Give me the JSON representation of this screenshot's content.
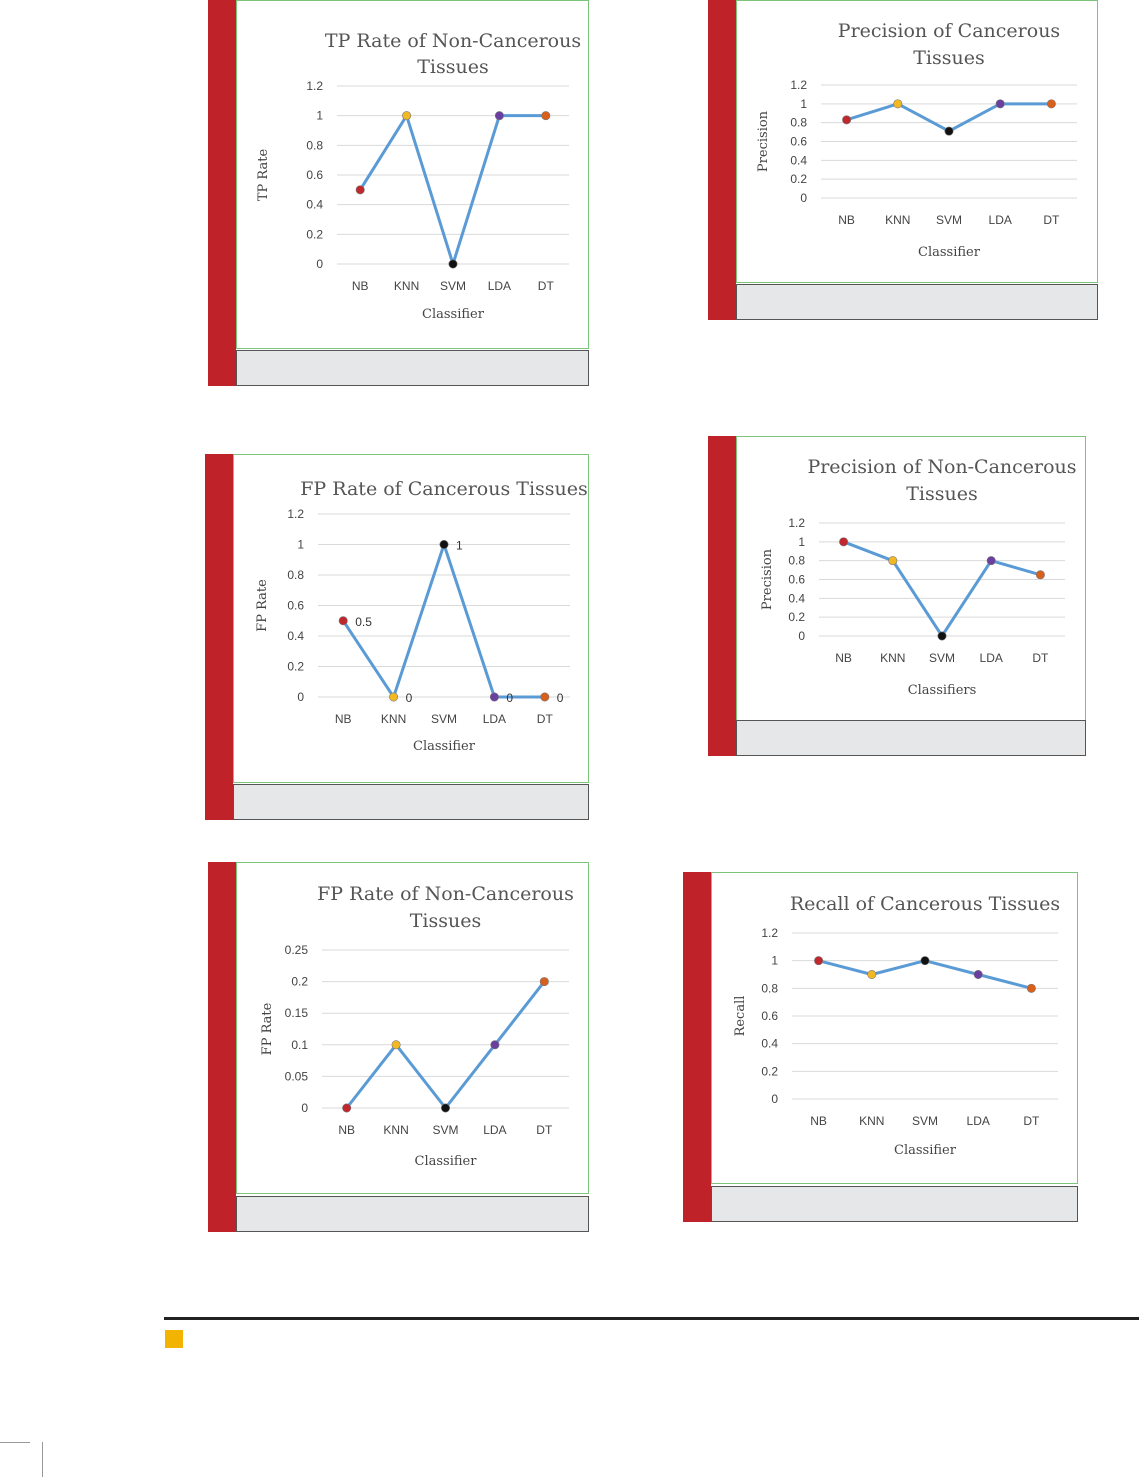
{
  "colors": {
    "line": "#5b9bd5",
    "grid": "#d9d9d9",
    "markers": [
      "#c0282d",
      "#f2b824",
      "#111111",
      "#6a3fa0",
      "#d9601b"
    ],
    "accent_bar": "#c0222a",
    "frame": "#7cc47c",
    "caption_bg": "#e6e7e8",
    "footer_square": "#f2b400"
  },
  "chart_data": [
    {
      "type": "line",
      "title": "TP Rate of Non-Cancerous Tissues",
      "title_lines": [
        "TP Rate of Non-Cancerous",
        "Tissues"
      ],
      "xlabel": "Classifier",
      "ylabel": "TP Rate",
      "categories": [
        "NB",
        "KNN",
        "SVM",
        "LDA",
        "DT"
      ],
      "values": [
        0.5,
        1,
        0,
        1,
        1
      ],
      "ylim": [
        0,
        1.2
      ],
      "yticks": [
        "0",
        "0.2",
        "0.4",
        "0.6",
        "0.8",
        "1",
        "1.2"
      ],
      "data_labels": [],
      "grid": true,
      "legend": "none"
    },
    {
      "type": "line",
      "title": "Precision of Cancerous Tissues",
      "title_lines": [
        "Precision of Cancerous",
        "Tissues"
      ],
      "xlabel": "Classifier",
      "ylabel": "Precision",
      "categories": [
        "NB",
        "KNN",
        "SVM",
        "LDA",
        "DT"
      ],
      "values": [
        0.83,
        1,
        0.71,
        1,
        1
      ],
      "ylim": [
        0,
        1.2
      ],
      "yticks": [
        "0",
        "0.2",
        "0.4",
        "0.6",
        "0.8",
        "1",
        "1.2"
      ],
      "data_labels": [],
      "grid": true,
      "legend": "none"
    },
    {
      "type": "line",
      "title": "FP Rate of Cancerous Tissues",
      "title_lines": [
        "FP Rate of Cancerous Tissues"
      ],
      "xlabel": "Classifier",
      "ylabel": "FP Rate",
      "categories": [
        "NB",
        "KNN",
        "SVM",
        "LDA",
        "DT"
      ],
      "values": [
        0.5,
        0,
        1,
        0,
        0
      ],
      "ylim": [
        0,
        1.2
      ],
      "yticks": [
        "0",
        "0.2",
        "0.4",
        "0.6",
        "0.8",
        "1",
        "1.2"
      ],
      "data_labels": [
        "0.5",
        "0",
        "1",
        "0",
        "0"
      ],
      "grid": true,
      "legend": "none"
    },
    {
      "type": "line",
      "title": "Precision of Non-Cancerous Tissues",
      "title_lines": [
        "Precision of Non-Cancerous",
        "Tissues"
      ],
      "xlabel": "Classifiers",
      "ylabel": "Precision",
      "categories": [
        "NB",
        "KNN",
        "SVM",
        "LDA",
        "DT"
      ],
      "values": [
        1,
        0.8,
        0,
        0.8,
        0.65
      ],
      "ylim": [
        0,
        1.2
      ],
      "yticks": [
        "0",
        "0.2",
        "0.4",
        "0.6",
        "0.8",
        "1",
        "1.2"
      ],
      "data_labels": [],
      "grid": true,
      "legend": "none"
    },
    {
      "type": "line",
      "title": "FP Rate of Non-Cancerous Tissues",
      "title_lines": [
        "FP Rate of Non-Cancerous",
        "Tissues"
      ],
      "xlabel": "Classifier",
      "ylabel": "FP Rate",
      "categories": [
        "NB",
        "KNN",
        "SVM",
        "LDA",
        "DT"
      ],
      "values": [
        0,
        0.1,
        0,
        0.1,
        0.2
      ],
      "ylim": [
        0,
        0.25
      ],
      "yticks": [
        "0",
        "0.05",
        "0.1",
        "0.15",
        "0.2",
        "0.25"
      ],
      "data_labels": [],
      "grid": true,
      "legend": "none"
    },
    {
      "type": "line",
      "title": "Recall of Cancerous Tissues",
      "title_lines": [
        "Recall of Cancerous Tissues"
      ],
      "xlabel": "Classifier",
      "ylabel": "Recall",
      "categories": [
        "NB",
        "KNN",
        "SVM",
        "LDA",
        "DT"
      ],
      "values": [
        1,
        0.9,
        1,
        0.9,
        0.8
      ],
      "ylim": [
        0,
        1.2
      ],
      "yticks": [
        "0",
        "0.2",
        "0.4",
        "0.6",
        "0.8",
        "1",
        "1.2"
      ],
      "data_labels": [],
      "grid": true,
      "legend": "none"
    }
  ]
}
